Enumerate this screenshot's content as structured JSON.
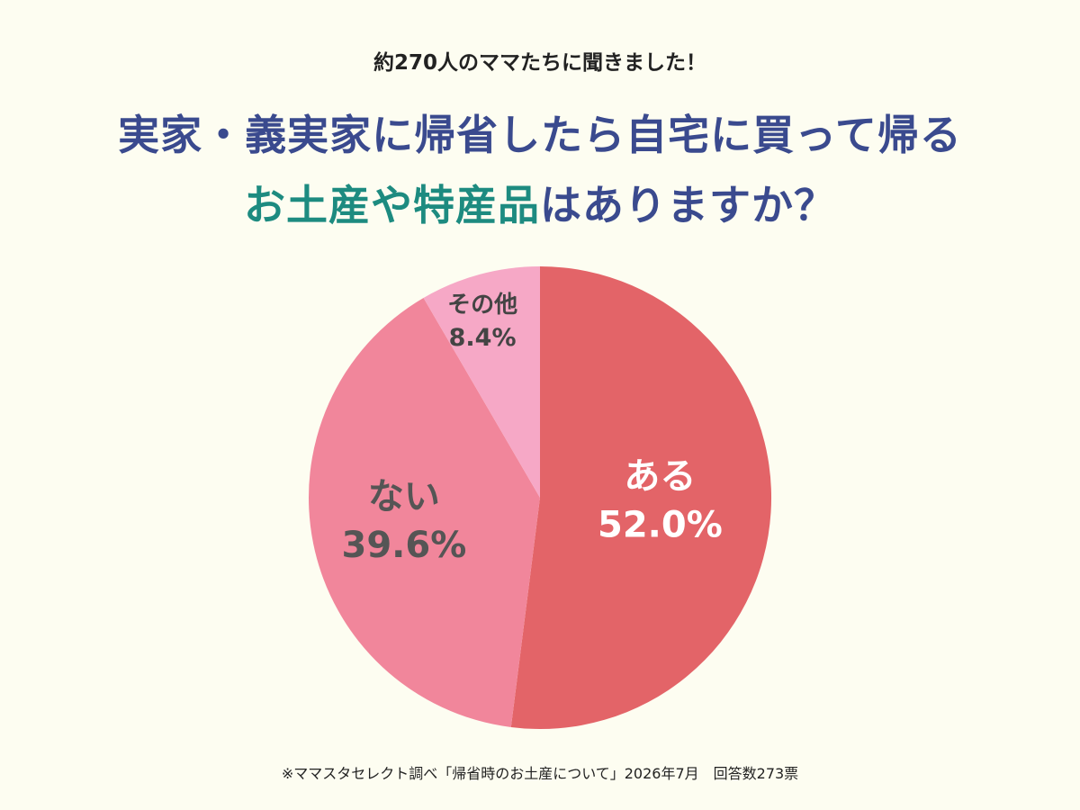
{
  "header": {
    "subtitle": "約270人のママたちに聞きました！",
    "title_line1": "実家・義実家に帰省したら自宅に買って帰る",
    "title_line2_highlight": "お土産や特産品",
    "title_line2_rest": "はありますか？"
  },
  "footnote": "※ママスタセレクト調べ「帰省時のお土産について」2026年7月　回答数273票",
  "colors": {
    "title_navy": "#3a4a8e",
    "title_teal": "#1d8b80",
    "background": "#fdfdf1"
  },
  "chart_data": {
    "type": "pie",
    "start": "12 o'clock",
    "direction": "clockwise",
    "slices": [
      {
        "label": "ある",
        "value": 52.0,
        "value_label": "52.0%",
        "color": "#e36468",
        "text_color": "#ffffff"
      },
      {
        "label": "ない",
        "value": 39.6,
        "value_label": "39.6%",
        "color": "#f1869b",
        "text_color": "#555555"
      },
      {
        "label": "その他",
        "value": 8.4,
        "value_label": "8.4%",
        "color": "#f6a8c6",
        "text_color": "#444444"
      }
    ]
  }
}
